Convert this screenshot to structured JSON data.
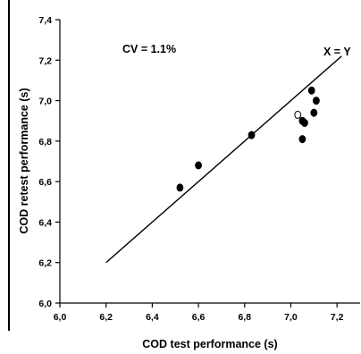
{
  "chart_data": {
    "type": "scatter",
    "title": "",
    "xlabel": "COD test performance (s)",
    "ylabel": "COD retest performance (s)",
    "xlim": [
      6.0,
      7.3
    ],
    "ylim": [
      6.0,
      7.4
    ],
    "x_ticks": [
      "6,0",
      "6,2",
      "6,4",
      "6,6",
      "6,8",
      "7,0",
      "7,2"
    ],
    "y_ticks": [
      "6,0",
      "6,2",
      "6,4",
      "6,6",
      "6,8",
      "7,0",
      "7,2",
      "7,4"
    ],
    "grid": false,
    "annotations": {
      "cv": "CV = 1.1%",
      "identity_line": "X = Y"
    },
    "identity_line": {
      "x": [
        6.2,
        7.22
      ],
      "y": [
        6.2,
        7.22
      ]
    },
    "series": [
      {
        "marker": "filled",
        "color": "#000000",
        "points": [
          {
            "x": 6.52,
            "y": 6.57
          },
          {
            "x": 6.6,
            "y": 6.68
          },
          {
            "x": 6.83,
            "y": 6.83
          },
          {
            "x": 7.05,
            "y": 6.9
          },
          {
            "x": 7.06,
            "y": 6.89
          },
          {
            "x": 7.05,
            "y": 6.81
          },
          {
            "x": 7.09,
            "y": 7.05
          },
          {
            "x": 7.11,
            "y": 7.0
          },
          {
            "x": 7.1,
            "y": 6.94
          }
        ]
      },
      {
        "marker": "open",
        "color": "#000000",
        "points": [
          {
            "x": 7.03,
            "y": 6.93
          }
        ]
      }
    ]
  }
}
